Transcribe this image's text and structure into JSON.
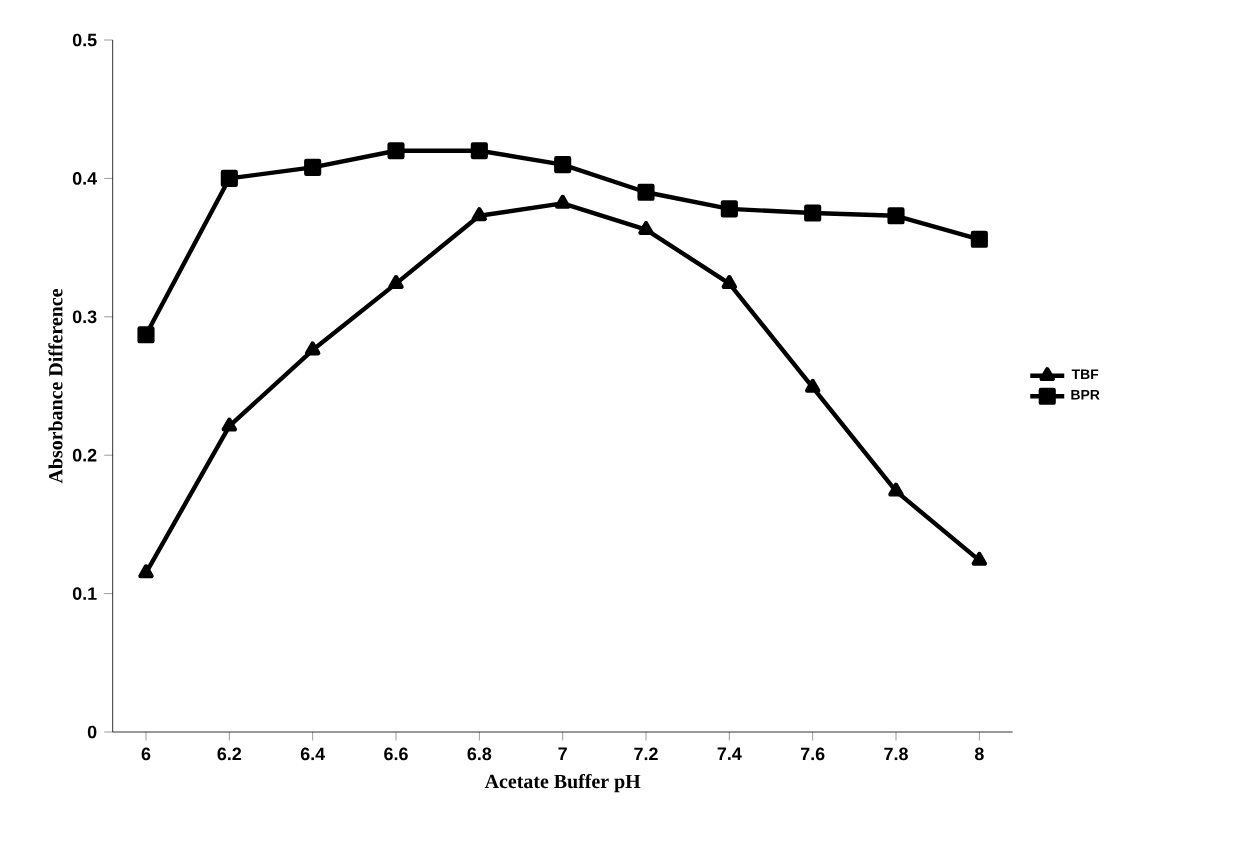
{
  "chart_data": {
    "type": "line",
    "xlabel": "Acetate Buffer pH",
    "ylabel": "Absorbance Difference",
    "categories": [
      "6",
      "6.2",
      "6.4",
      "6.6",
      "6.8",
      "7",
      "7.2",
      "7.4",
      "7.6",
      "7.8",
      "8"
    ],
    "series": [
      {
        "name": "TBF",
        "color": "#000000",
        "marker": "triangle",
        "values": [
          0.115,
          0.221,
          0.276,
          0.324,
          0.373,
          0.382,
          0.363,
          0.324,
          0.249,
          0.174,
          0.124
        ]
      },
      {
        "name": "BPR",
        "color": "#000000",
        "marker": "square",
        "values": [
          0.287,
          0.4,
          0.408,
          0.42,
          0.42,
          0.41,
          0.39,
          0.378,
          0.375,
          0.373,
          0.356
        ]
      }
    ],
    "ylim": [
      0,
      0.5
    ],
    "yticks": [
      0,
      0.1,
      0.2,
      0.3,
      0.4,
      0.5
    ],
    "grid": false,
    "legend": "right",
    "line_style": "solid"
  }
}
